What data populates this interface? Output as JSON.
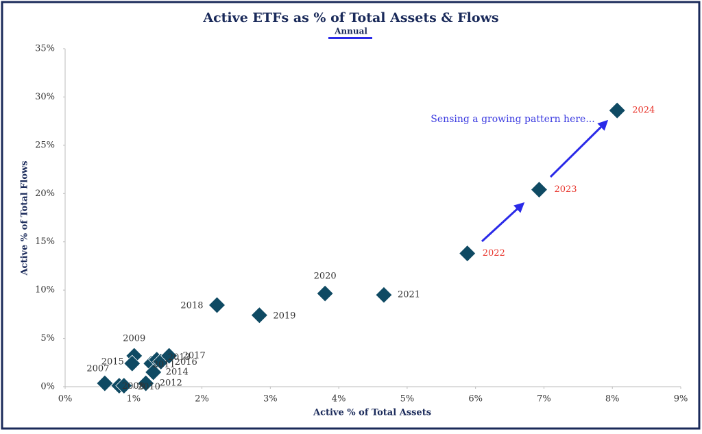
{
  "chart_data": {
    "type": "scatter",
    "title": "Active ETFs as % of Total Assets & Flows",
    "subtitle": "Annual",
    "x_label": "Active % of Total Assets",
    "y_label": "Active % of Total Flows",
    "annotation": "Sensing a growing pattern here...",
    "xlim": [
      0,
      9
    ],
    "ylim": [
      0,
      35
    ],
    "xticks": [
      {
        "value": 0,
        "label": "0%"
      },
      {
        "value": 1,
        "label": "1%"
      },
      {
        "value": 2,
        "label": "2%"
      },
      {
        "value": 3,
        "label": "3%"
      },
      {
        "value": 4,
        "label": "4%"
      },
      {
        "value": 5,
        "label": "5%"
      },
      {
        "value": 6,
        "label": "6%"
      },
      {
        "value": 7,
        "label": "7%"
      },
      {
        "value": 8,
        "label": "8%"
      },
      {
        "value": 9,
        "label": "9%"
      }
    ],
    "yticks": [
      {
        "value": 0,
        "label": "0%"
      },
      {
        "value": 5,
        "label": "5%"
      },
      {
        "value": 10,
        "label": "10%"
      },
      {
        "value": 15,
        "label": "15%"
      },
      {
        "value": 20,
        "label": "20%"
      },
      {
        "value": 25,
        "label": "25%"
      },
      {
        "value": 30,
        "label": "30%"
      },
      {
        "value": 35,
        "label": "35%"
      }
    ],
    "series": [
      {
        "color": "#0f4a63",
        "label_color": "#333333",
        "labels": [
          "2007",
          "2008",
          "2009",
          "2010",
          "2011",
          "2012",
          "2013",
          "2014",
          "2015",
          "2016",
          "2017",
          "2018",
          "2019",
          "2020",
          "2021"
        ],
        "x": [
          0.58,
          0.79,
          1.01,
          0.86,
          1.26,
          1.18,
          1.34,
          1.29,
          0.98,
          1.4,
          1.52,
          2.22,
          2.84,
          3.8,
          4.66
        ],
        "values": [
          0.35,
          0.1,
          3.2,
          0.1,
          2.4,
          0.35,
          2.8,
          1.5,
          2.4,
          2.6,
          3.2,
          8.45,
          7.4,
          9.65,
          9.5
        ]
      },
      {
        "color": "#0f4a63",
        "label_color": "#e8332a",
        "labels": [
          "2022",
          "2023",
          "2024"
        ],
        "x": [
          5.88,
          6.93,
          8.07
        ],
        "values": [
          13.8,
          20.4,
          28.6
        ]
      }
    ]
  }
}
